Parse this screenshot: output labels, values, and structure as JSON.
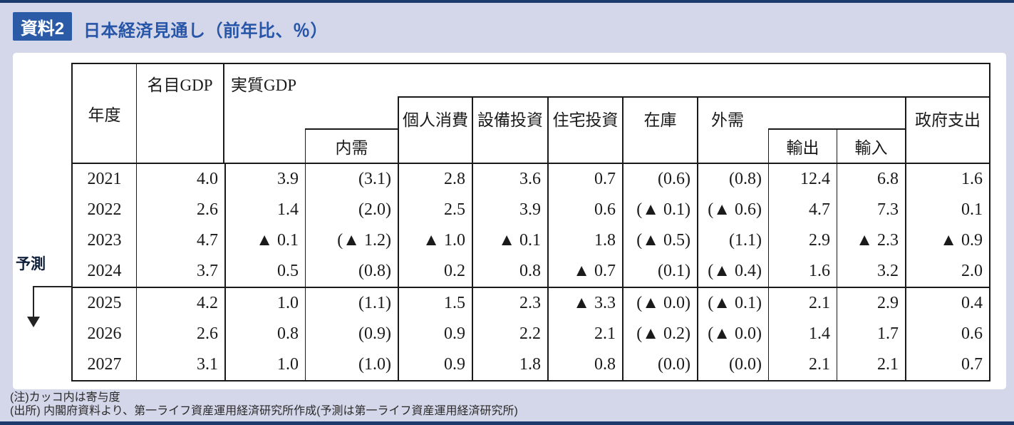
{
  "doc": {
    "badge": "資料2",
    "title": "日本経済見通し（前年比、％）"
  },
  "forecast": {
    "label": "予測"
  },
  "table": {
    "columns": {
      "year": "年度",
      "nominal_gdp": "名目GDP",
      "real_gdp": "実質GDP",
      "domestic_demand": "内需",
      "consumption": "個人消費",
      "capex": "設備投資",
      "housing": "住宅投資",
      "inventory": "在庫",
      "external": "外需",
      "exports": "輸出",
      "imports": "輸入",
      "government": "政府支出"
    },
    "rows": [
      {
        "year": "2021",
        "values": [
          "4.0",
          "3.9",
          "(3.1)",
          "2.8",
          "3.6",
          "0.7",
          "(0.6)",
          "(0.8)",
          "12.4",
          "6.8",
          "1.6"
        ]
      },
      {
        "year": "2022",
        "values": [
          "2.6",
          "1.4",
          "(2.0)",
          "2.5",
          "3.9",
          "0.6",
          "(▲ 0.1)",
          "(▲ 0.6)",
          "4.7",
          "7.3",
          "0.1"
        ]
      },
      {
        "year": "2023",
        "values": [
          "4.7",
          "▲ 0.1",
          "(▲ 1.2)",
          "▲ 1.0",
          "▲ 0.1",
          "1.8",
          "(▲ 0.5)",
          "(1.1)",
          "2.9",
          "▲ 2.3",
          "▲ 0.9"
        ]
      },
      {
        "year": "2024",
        "values": [
          "3.7",
          "0.5",
          "(0.8)",
          "0.2",
          "0.8",
          "▲ 0.7",
          "(0.1)",
          "(▲ 0.4)",
          "1.6",
          "3.2",
          "2.0"
        ]
      },
      {
        "year": "2025",
        "values": [
          "4.2",
          "1.0",
          "(1.1)",
          "1.5",
          "2.3",
          "▲ 3.3",
          "(▲ 0.0)",
          "(▲ 0.1)",
          "2.1",
          "2.9",
          "0.4"
        ]
      },
      {
        "year": "2026",
        "values": [
          "2.6",
          "0.8",
          "(0.9)",
          "0.9",
          "2.2",
          "2.1",
          "(▲ 0.2)",
          "(▲ 0.0)",
          "1.4",
          "1.7",
          "0.6"
        ]
      },
      {
        "year": "2027",
        "values": [
          "3.1",
          "1.0",
          "(1.0)",
          "0.9",
          "1.8",
          "0.8",
          "(0.0)",
          "(0.0)",
          "2.1",
          "2.1",
          "0.7"
        ]
      }
    ]
  },
  "notes": {
    "note1": "(注)カッコ内は寄与度",
    "note2": "(出所) 内閣府資料より、第一ライフ資産運用経済研究所作成(予測は第一ライフ資産運用経済研究所)"
  },
  "colors": {
    "frame_navy": "#1d3a6d",
    "badge_blue": "#2b5aa7",
    "title_blue": "#2755a8",
    "background_lavender": "#d4d7e9",
    "table_border": "#1a1a1a"
  }
}
